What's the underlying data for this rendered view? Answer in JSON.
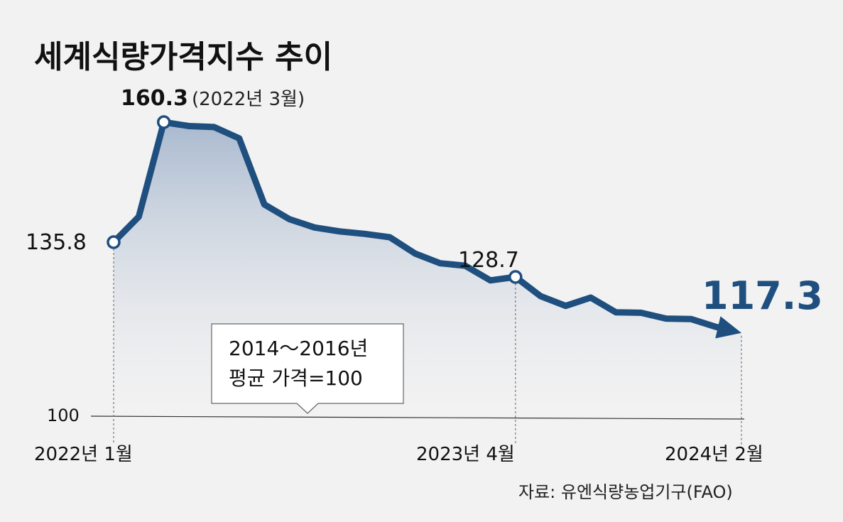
{
  "chart_data": {
    "type": "area",
    "title": "세계식량가격지수 추이",
    "x_labels": [
      "2022년 1월",
      "2023년 4월",
      "2024년 2월"
    ],
    "y_baseline_label": "100",
    "ylim": [
      100,
      162
    ],
    "values": [
      135.8,
      141,
      160.3,
      159.5,
      159.3,
      157,
      143.5,
      140.5,
      138.8,
      138,
      137.5,
      136.8,
      133.5,
      131.5,
      131,
      128,
      128.7,
      124.8,
      122.8,
      124.5,
      121.5,
      121.4,
      120.2,
      120.1,
      118.5,
      117.3
    ],
    "annotations": {
      "first": {
        "value": "135.8"
      },
      "peak": {
        "value": "160.3",
        "note": "(2022년 3월)"
      },
      "mid": {
        "value": "128.7"
      },
      "last": {
        "value": "117.3"
      }
    },
    "note_box": {
      "line1": "2014～2016년",
      "line2": "평균 가격=100"
    },
    "source": "자료: 유엔식량농업기구(FAO)",
    "colors": {
      "line": "#1f4f7f",
      "area_top": "#a9b9cf",
      "area_bottom": "#f2f2f2",
      "text": "#111111"
    }
  }
}
